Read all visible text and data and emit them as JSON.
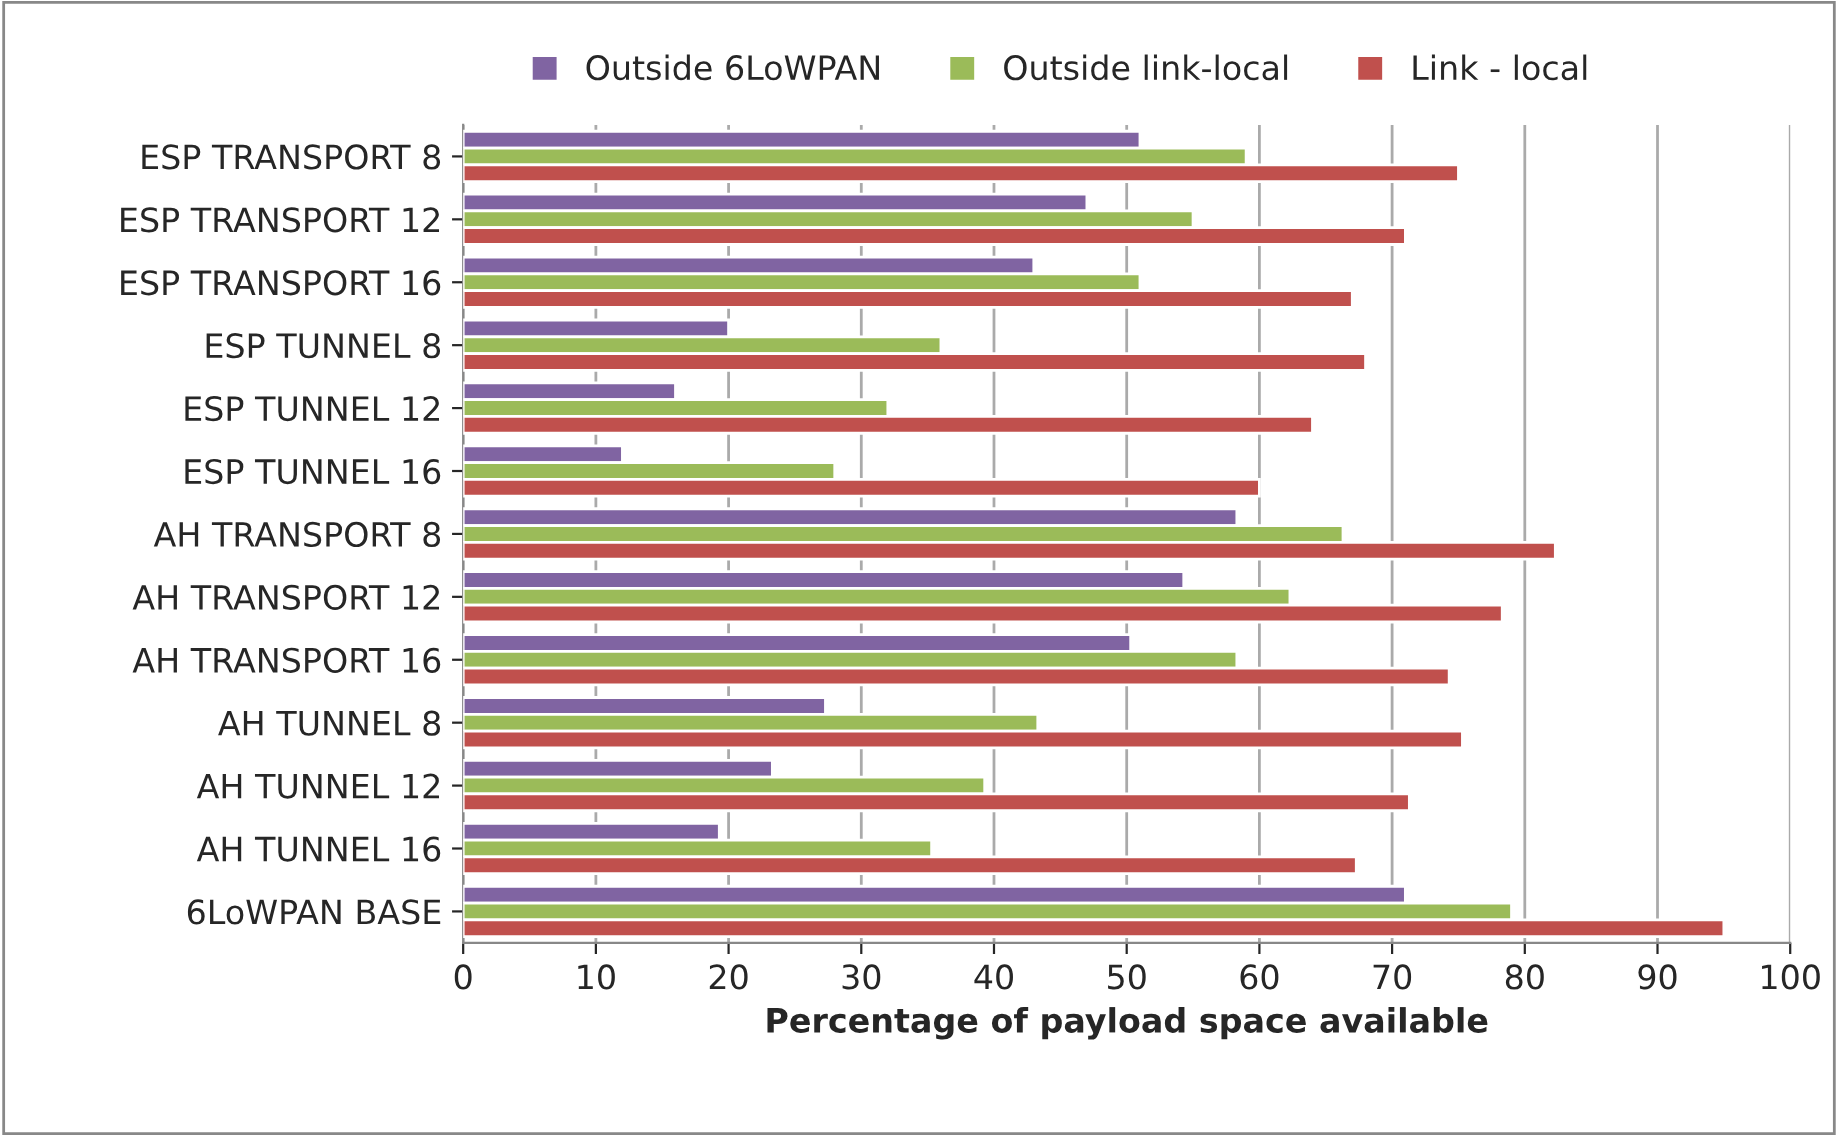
{
  "chart_data": {
    "type": "bar",
    "orientation": "horizontal",
    "xlabel": "Percentage of payload space available",
    "categories": [
      "ESP TRANSPORT 8",
      "ESP TRANSPORT 12",
      "ESP TRANSPORT 16",
      "ESP TUNNEL 8",
      "ESP TUNNEL 12",
      "ESP TUNNEL 16",
      "AH TRANSPORT 8",
      "AH TRANSPORT 12",
      "AH TRANSPORT 16",
      "AH TUNNEL 8",
      "AH TUNNEL 12",
      "AH TUNNEL 16",
      "6LoWPAN BASE"
    ],
    "series": [
      {
        "name": "Outside 6LoWPAN",
        "color": "#8064a2",
        "values": [
          51,
          47,
          43,
          20,
          16,
          12,
          58.3,
          54.3,
          50.3,
          27.3,
          23.3,
          19.3,
          71
        ]
      },
      {
        "name": "Outside link-local",
        "color": "#9bbb59",
        "values": [
          59,
          55,
          51,
          36,
          32,
          28,
          66.3,
          62.3,
          58.3,
          43.3,
          39.3,
          35.3,
          79
        ]
      },
      {
        "name": "Link - local",
        "color": "#c0504d",
        "values": [
          75,
          71,
          67,
          68,
          64,
          60,
          82.3,
          78.3,
          74.3,
          75.3,
          71.3,
          67.3,
          95
        ]
      }
    ],
    "xlim": [
      0,
      100
    ],
    "xticks": [
      0,
      10,
      20,
      30,
      40,
      50,
      60,
      70,
      80,
      90,
      100
    ],
    "grid": "x",
    "legend": "top"
  }
}
